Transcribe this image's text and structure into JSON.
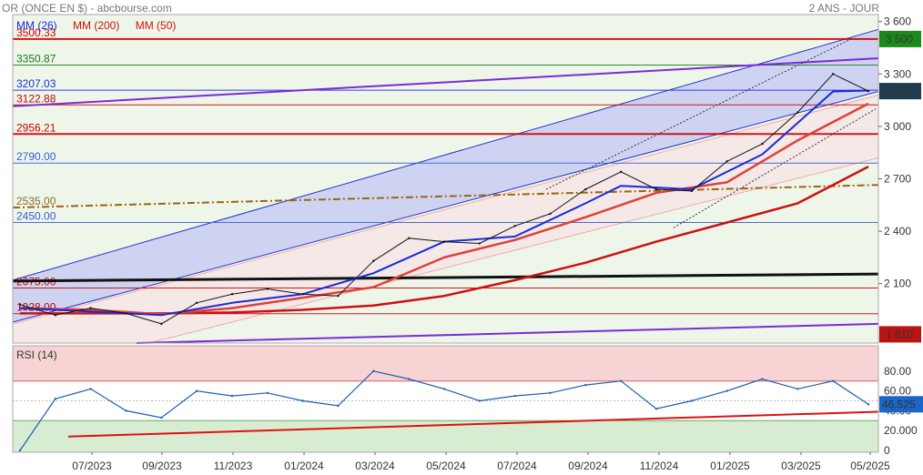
{
  "header": {
    "title": "OR (ONCE EN $) - abcbourse.com",
    "period": "2 ANS - JOUR"
  },
  "legend": {
    "ma26": "MM (26)",
    "ma200": "MM (200)",
    "ma50": "MM (50)"
  },
  "colors": {
    "ma26": "#1a2bd8",
    "ma200": "#cc1111",
    "ma50": "#e0403a",
    "price": "#111111",
    "rsi": "#1a5fb4"
  },
  "levels": [
    {
      "label": "3500.33",
      "value": 3500.33,
      "color": "#cc0000"
    },
    {
      "label": "3350.87",
      "value": 3350.87,
      "color": "#1a7a1a"
    },
    {
      "label": "3207.03",
      "value": 3207.03,
      "color": "#1a2bd8"
    },
    {
      "label": "3122.88",
      "value": 3122.88,
      "color": "#cc0000"
    },
    {
      "label": "2956.21",
      "value": 2956.21,
      "color": "#cc0000"
    },
    {
      "label": "2790.00",
      "value": 2790.0,
      "color": "#3a5ad8"
    },
    {
      "label": "2535.00",
      "value": 2535.0,
      "color": "#8a6a2a"
    },
    {
      "label": "2450.00",
      "value": 2450.0,
      "color": "#3a5ad8"
    },
    {
      "label": "2075.00",
      "value": 2075.0,
      "color": "#cc0000"
    },
    {
      "label": "1928.00",
      "value": 1928.0,
      "color": "#cc0000"
    }
  ],
  "price_badges": [
    {
      "label": "3 500",
      "value": 3500,
      "color": "#1a8a1a"
    },
    {
      "label": "3 202",
      "value": 3202,
      "color": "#1f3d4e"
    },
    {
      "label": "1 810",
      "value": 1810,
      "color": "#b81414"
    }
  ],
  "rsi_badge": {
    "label": "46.525",
    "value": 46.525,
    "color": "#1a66c8"
  },
  "chart_data": [
    {
      "type": "line",
      "title": "OR (ONCE EN $)",
      "series": [
        {
          "name": "OR (ONCE EN $)",
          "x": [
            "05/2023",
            "06/2023",
            "07/2023",
            "08/2023",
            "09/2023",
            "10/2023",
            "11/2023",
            "12/2023",
            "01/2024",
            "02/2024",
            "03/2024",
            "04/2024",
            "05/2024",
            "06/2024",
            "07/2024",
            "08/2024",
            "09/2024",
            "10/2024",
            "11/2024",
            "12/2024",
            "01/2025",
            "02/2025",
            "03/2025",
            "04/2025",
            "05/2025"
          ],
          "y": [
            1980,
            1920,
            1960,
            1930,
            1870,
            1990,
            2040,
            2070,
            2040,
            2030,
            2230,
            2360,
            2340,
            2330,
            2430,
            2500,
            2640,
            2740,
            2640,
            2630,
            2800,
            2900,
            3080,
            3300,
            3202
          ]
        },
        {
          "name": "MM (26)",
          "x": [
            "05/2023",
            "07/2023",
            "09/2023",
            "11/2023",
            "01/2024",
            "03/2024",
            "05/2024",
            "07/2024",
            "09/2024",
            "10/2024",
            "12/2024",
            "02/2025",
            "04/2025",
            "05/2025"
          ],
          "y": [
            1960,
            1940,
            1920,
            1990,
            2040,
            2160,
            2340,
            2370,
            2560,
            2660,
            2640,
            2840,
            3200,
            3205
          ]
        },
        {
          "name": "MM (50)",
          "x": [
            "05/2023",
            "07/2023",
            "09/2023",
            "11/2023",
            "01/2024",
            "03/2024",
            "05/2024",
            "07/2024",
            "09/2024",
            "11/2024",
            "01/2025",
            "03/2025",
            "05/2025"
          ],
          "y": [
            1960,
            1950,
            1925,
            1960,
            2020,
            2080,
            2250,
            2350,
            2480,
            2620,
            2680,
            2920,
            3130
          ]
        },
        {
          "name": "MM (200)",
          "x": [
            "05/2023",
            "07/2023",
            "09/2023",
            "11/2023",
            "01/2024",
            "03/2024",
            "05/2024",
            "07/2024",
            "09/2024",
            "11/2024",
            "01/2025",
            "03/2025",
            "05/2025"
          ],
          "y": [
            1930,
            1930,
            1930,
            1935,
            1950,
            1975,
            2030,
            2120,
            2220,
            2340,
            2450,
            2560,
            2770
          ]
        }
      ],
      "yticks": [
        3600,
        3300,
        3000,
        2700,
        2400,
        2100
      ],
      "ytick_labels": [
        "3 600",
        "3 300",
        "3 000",
        "2 700",
        "2 400",
        "2 100"
      ],
      "ylim": [
        1760,
        3640
      ],
      "xticks": [
        "07/2023",
        "09/2023",
        "11/2023",
        "01/2024",
        "03/2024",
        "05/2024",
        "07/2024",
        "09/2024",
        "11/2024",
        "01/2025",
        "03/2025",
        "05/2025"
      ],
      "grid": true
    },
    {
      "type": "line",
      "title": "RSI (14)",
      "series": [
        {
          "name": "RSI (14)",
          "x": [
            "05/2023",
            "06/2023",
            "07/2023",
            "08/2023",
            "09/2023",
            "10/2023",
            "11/2023",
            "12/2023",
            "01/2024",
            "02/2024",
            "03/2024",
            "04/2024",
            "05/2024",
            "06/2024",
            "07/2024",
            "08/2024",
            "09/2024",
            "10/2024",
            "11/2024",
            "12/2024",
            "01/2025",
            "02/2025",
            "03/2025",
            "04/2025",
            "05/2025"
          ],
          "y": [
            0,
            52,
            62,
            40,
            33,
            60,
            55,
            58,
            50,
            45,
            80,
            72,
            62,
            50,
            55,
            58,
            66,
            70,
            42,
            50,
            60,
            72,
            62,
            70,
            46.5
          ]
        }
      ],
      "yticks": [
        80,
        60,
        40,
        20,
        0
      ],
      "ytick_labels": [
        "80.00",
        "60.00",
        "40.00",
        "20.000",
        "0"
      ],
      "ylim": [
        0,
        100
      ],
      "zones": {
        "overbought": 70,
        "oversold": 30
      }
    }
  ]
}
